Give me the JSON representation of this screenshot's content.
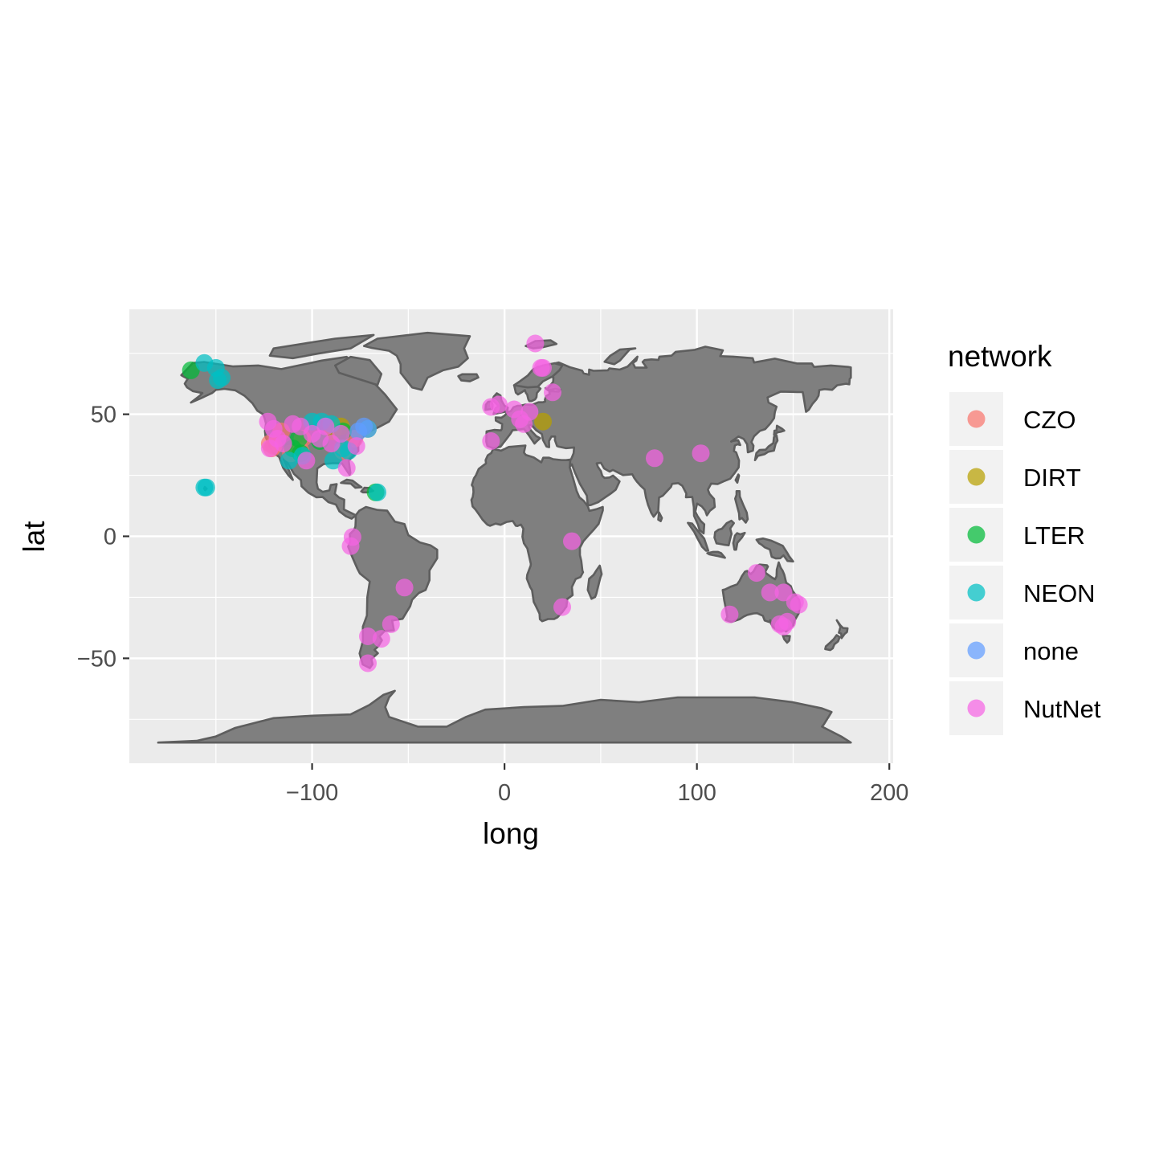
{
  "chart_data": {
    "type": "scatter",
    "title": "",
    "xlabel": "long",
    "ylabel": "lat",
    "xlim": [
      -195,
      202
    ],
    "ylim": [
      -93,
      93
    ],
    "x_ticks": [
      -100,
      0,
      100,
      200
    ],
    "x_tick_labels": [
      "−100",
      "0",
      "100",
      "200"
    ],
    "y_ticks": [
      -50,
      0,
      50
    ],
    "y_tick_labels": [
      "−50",
      "0",
      "50"
    ],
    "grid": true,
    "basemap": "world",
    "legend": {
      "title": "network",
      "position": "right"
    },
    "series": [
      {
        "name": "CZO",
        "color": "#F8766D",
        "points": [
          [
            -122,
            38
          ],
          [
            -120,
            37
          ],
          [
            -116,
            43
          ],
          [
            -106,
            35
          ],
          [
            -105,
            40
          ],
          [
            -78,
            40
          ],
          [
            -84,
            35
          ],
          [
            -111,
            34
          ],
          [
            -121,
            36
          ]
        ]
      },
      {
        "name": "DIRT",
        "color": "#B79F00",
        "points": [
          [
            -89,
            43
          ],
          [
            -85,
            45
          ],
          [
            20,
            47
          ]
        ]
      },
      {
        "name": "LTER",
        "color": "#00BA38",
        "points": [
          [
            -163,
            68
          ],
          [
            -107,
            40
          ],
          [
            -106,
            34
          ],
          [
            -110,
            36
          ],
          [
            -67,
            18
          ],
          [
            -84,
            43
          ],
          [
            -96,
            39
          ],
          [
            -71,
            44
          ]
        ]
      },
      {
        "name": "NEON",
        "color": "#00BFC4",
        "points": [
          [
            -156,
            71
          ],
          [
            -150,
            69
          ],
          [
            -147,
            65
          ],
          [
            -149,
            64
          ],
          [
            -155,
            20
          ],
          [
            -156,
            20
          ],
          [
            -66,
            18
          ],
          [
            -112,
            31
          ],
          [
            -90,
            46
          ],
          [
            -95,
            47
          ],
          [
            -100,
            47
          ],
          [
            -84,
            36
          ],
          [
            -81,
            35
          ],
          [
            -89,
            31
          ],
          [
            -105,
            33
          ]
        ]
      },
      {
        "name": "none",
        "color": "#619CFF",
        "points": [
          [
            -73,
            45
          ],
          [
            -76,
            43
          ],
          [
            -71,
            44
          ]
        ]
      },
      {
        "name": "NutNet",
        "color": "#F564E3",
        "points": [
          [
            -123,
            47
          ],
          [
            -120,
            44
          ],
          [
            -115,
            38
          ],
          [
            -100,
            42
          ],
          [
            -96,
            40
          ],
          [
            -93,
            45
          ],
          [
            -85,
            42
          ],
          [
            -82,
            28
          ],
          [
            -77,
            37
          ],
          [
            -110,
            46
          ],
          [
            -103,
            31
          ],
          [
            -90,
            38
          ],
          [
            -118,
            40
          ],
          [
            -106,
            45
          ],
          [
            -122,
            36
          ],
          [
            -79,
            -0.3
          ],
          [
            -80,
            -4
          ],
          [
            -71,
            -41
          ],
          [
            -64,
            -42
          ],
          [
            -59,
            -36
          ],
          [
            -71,
            -52
          ],
          [
            -52,
            -21
          ],
          [
            -7,
            53
          ],
          [
            -7,
            39
          ],
          [
            -3,
            54
          ],
          [
            5,
            52
          ],
          [
            8,
            48
          ],
          [
            10,
            46
          ],
          [
            13,
            51
          ],
          [
            16,
            79
          ],
          [
            19,
            69
          ],
          [
            25,
            59
          ],
          [
            20,
            69
          ],
          [
            35,
            -2
          ],
          [
            30,
            -29
          ],
          [
            78,
            32
          ],
          [
            102,
            34
          ],
          [
            117,
            -32
          ],
          [
            131,
            -15
          ],
          [
            138,
            -23
          ],
          [
            145,
            -37
          ],
          [
            151,
            -27
          ],
          [
            147,
            -35
          ],
          [
            153,
            -28
          ],
          [
            143,
            -36
          ],
          [
            145,
            -23
          ]
        ]
      }
    ]
  }
}
